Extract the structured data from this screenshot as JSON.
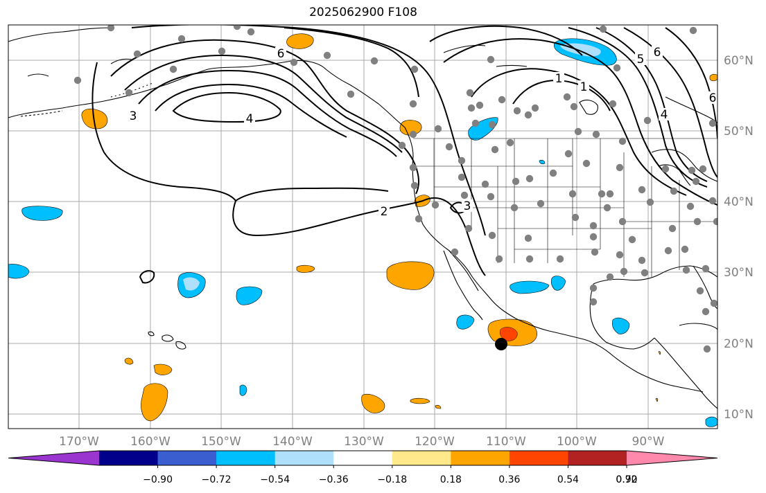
{
  "title": "2025062900 F108",
  "axes": {
    "lon_labels": [
      "170°W",
      "160°W",
      "150°W",
      "140°W",
      "130°W",
      "120°W",
      "110°W",
      "100°W",
      "90°W"
    ],
    "lat_labels": [
      "60°N",
      "50°N",
      "40°N",
      "30°N",
      "20°N",
      "10°N"
    ],
    "lon_range": [
      -180,
      -80
    ],
    "lat_range": [
      8,
      65
    ]
  },
  "contour_labels": [
    "6",
    "3",
    "4",
    "2",
    "3",
    "1",
    "6",
    "5",
    "1",
    "4",
    "6"
  ],
  "colorbar": {
    "ticks": [
      "−0.90",
      "−0.72",
      "−0.54",
      "−0.36",
      "−0.18",
      "0.18",
      "0.36",
      "0.54",
      "0.72",
      "0.90"
    ],
    "colors": [
      "#9a35d0",
      "#00008b",
      "#3a5dcf",
      "#00bfff",
      "#aee0fb",
      "#ffffff",
      "#ffe98a",
      "#ffa500",
      "#ff4500",
      "#b22222",
      "#ff88ad"
    ]
  },
  "colors": {
    "positive": "#ffa500",
    "strong_positive": "#ff4500",
    "negative": "#00bfff",
    "station": "#808080",
    "marker": "#000000"
  }
}
